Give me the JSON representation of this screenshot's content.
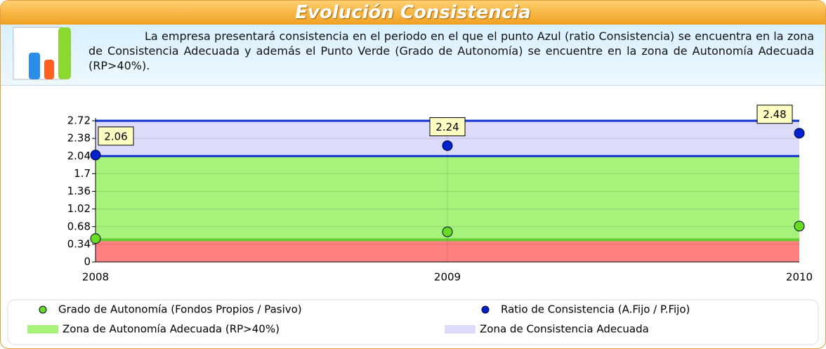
{
  "header": {
    "title": "Evolución Consistencia",
    "description": "La empresa presentará consistencia en el periodo en el que el punto Azul (ratio Consistencia) se encuentra en la zona de Consistencia Adecuada y además el Punto Verde (Grado de Autonomía) se encuentre en la zona de Autonomía Adecuada (RP>40%)."
  },
  "chart_data": {
    "type": "scatter",
    "categories": [
      "2008",
      "2009",
      "2010"
    ],
    "series": [
      {
        "name": "Grado de Autonomía (Fondos Propios / Pasivo)",
        "color": "#66dd22",
        "values": [
          0.45,
          0.58,
          0.69
        ]
      },
      {
        "name": "Ratio de Consistencia (A.Fijo / P.Fijo)",
        "color": "#0022cc",
        "values": [
          2.06,
          2.24,
          2.48
        ],
        "data_labels": true
      }
    ],
    "zones": [
      {
        "range": [
          0,
          0.4
        ],
        "color": "#ff8080"
      },
      {
        "name": "Zona de Autonomía Adecuada (RP>40%)",
        "range": [
          0.4,
          2.04
        ],
        "color": "#a6f27a"
      },
      {
        "name": "Zona de Consistencia Adecuada",
        "range": [
          2.04,
          2.72
        ],
        "color": "#dcdcfa"
      }
    ],
    "ylim": [
      0,
      2.72
    ],
    "yticks": [
      0,
      0.34,
      0.68,
      1.02,
      1.36,
      1.7,
      2.04,
      2.38,
      2.72
    ],
    "grid": true
  }
}
